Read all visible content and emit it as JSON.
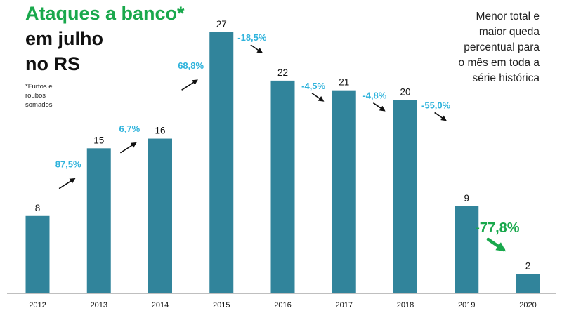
{
  "chart_data": {
    "type": "bar",
    "title": "Ataques a banco*",
    "title_continued": [
      "em julho",
      "no RS"
    ],
    "footnote": [
      "*Furtos e",
      "roubos",
      "somados"
    ],
    "note": [
      "Menor total e",
      "maior queda",
      "percentual para",
      "o mês em toda a",
      "série histórica"
    ],
    "categories": [
      "2012",
      "2013",
      "2014",
      "2015",
      "2016",
      "2017",
      "2018",
      "2019",
      "2020"
    ],
    "values": [
      8,
      15,
      16,
      27,
      22,
      21,
      20,
      9,
      2
    ],
    "value_labels": [
      "8",
      "15",
      "16",
      "27",
      "22",
      "21",
      "20",
      "9",
      "2"
    ],
    "changes": [
      {
        "label": "87,5%",
        "direction": "up"
      },
      {
        "label": "6,7%",
        "direction": "up"
      },
      {
        "label": "68,8%",
        "direction": "up"
      },
      {
        "label": "-18,5%",
        "direction": "down"
      },
      {
        "label": "-4,5%",
        "direction": "down"
      },
      {
        "label": "-4,8%",
        "direction": "down"
      },
      {
        "label": "-55,0%",
        "direction": "down"
      },
      {
        "label": "-77,8%",
        "direction": "down",
        "highlight": true
      }
    ],
    "ylim": [
      0,
      27
    ],
    "grid": false,
    "legend": "none",
    "colors": {
      "bar": "#31849b",
      "change": "#2fb3dc",
      "highlight": "#19a84c",
      "title": "#19a84c",
      "arrow": "#111111"
    }
  }
}
